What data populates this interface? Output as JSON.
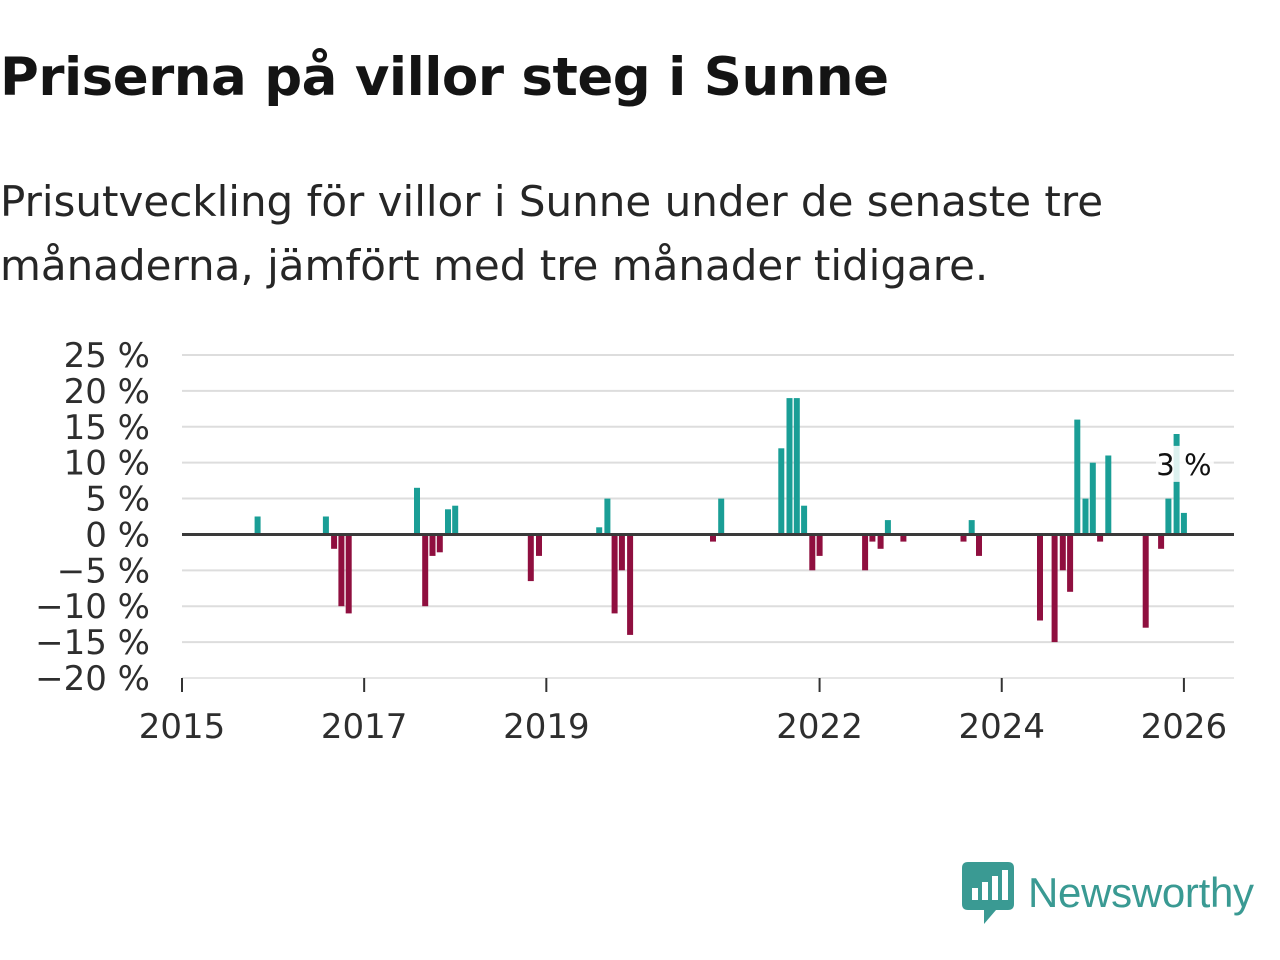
{
  "title": "Priserna på villor steg i Sunne",
  "subtitle": "Prisutveckling för villor i Sunne under de senaste tre månaderna, jämfört med tre månader tidigare.",
  "brand": {
    "name": "Newsworthy",
    "icon": "newsworthy-logo-icon",
    "color": "#3a9a93"
  },
  "colors": {
    "positive": "#1a9e96",
    "negative": "#8f0f3f",
    "grid": "#dddddd",
    "zero": "#3a3a3a"
  },
  "chart_data": {
    "type": "bar",
    "title": "Priserna på villor steg i Sunne",
    "xlabel": "",
    "ylabel": "",
    "unit": "%",
    "ylim": [
      -20,
      25
    ],
    "yticks": [
      "25 %",
      "20 %",
      "15 %",
      "10 %",
      "5 %",
      "0 %",
      "−5 %",
      "−10 %",
      "−15 %",
      "−20 %"
    ],
    "ytick_values": [
      25,
      20,
      15,
      10,
      5,
      0,
      -5,
      -10,
      -15,
      -20
    ],
    "xlim": [
      2015.0,
      2026.55
    ],
    "xticks": [
      "2015",
      "2017",
      "2019",
      "2022",
      "2024",
      "2026"
    ],
    "xtick_values": [
      2015,
      2017,
      2019,
      2022,
      2024,
      2026
    ],
    "series": [
      {
        "name": "Prisutveckling",
        "x": [
          2015.83,
          2016.58,
          2016.67,
          2016.75,
          2016.83,
          2017.58,
          2017.67,
          2017.75,
          2017.83,
          2017.92,
          2018.0,
          2018.83,
          2018.92,
          2019.58,
          2019.67,
          2019.75,
          2019.83,
          2019.92,
          2020.83,
          2020.92,
          2021.58,
          2021.67,
          2021.75,
          2021.83,
          2021.92,
          2022.0,
          2022.5,
          2022.58,
          2022.67,
          2022.75,
          2022.92,
          2023.58,
          2023.67,
          2023.75,
          2024.42,
          2024.58,
          2024.67,
          2024.75,
          2024.83,
          2024.92,
          2025.0,
          2025.08,
          2025.17,
          2025.58,
          2025.75,
          2025.83,
          2025.92,
          2026.0
        ],
        "values": [
          2.5,
          2.5,
          -2,
          -10,
          -11,
          6.5,
          -10,
          -3,
          -2.5,
          3.5,
          4,
          -6.5,
          -3,
          1,
          5,
          -11,
          -5,
          -14,
          -1,
          5,
          12,
          19,
          19,
          4,
          -5,
          -3,
          -5,
          -1,
          -2,
          2,
          -1,
          -1,
          2,
          -3,
          -12,
          -15,
          -5,
          -8,
          16,
          5,
          10,
          -1,
          11,
          -13,
          -2,
          5,
          14,
          3
        ]
      }
    ],
    "annotations": [
      {
        "text": "3 %",
        "x": 2026.0,
        "value": 3
      }
    ]
  }
}
